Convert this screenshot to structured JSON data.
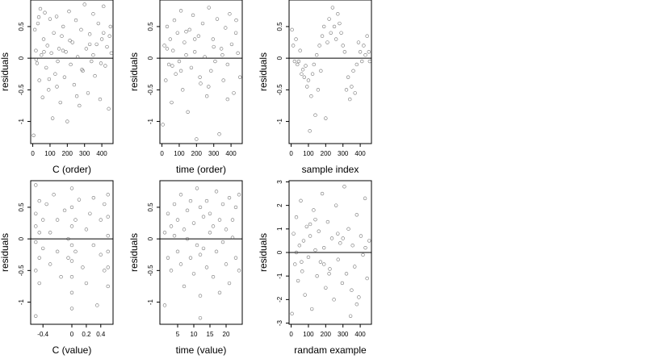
{
  "chart_data": [
    {
      "type": "scatter",
      "xlabel": "C (order)",
      "ylabel": "residuals",
      "xticks": [
        0,
        100,
        200,
        300,
        400
      ],
      "yticks": [
        -1.0,
        -0.5,
        0.0,
        0.5
      ],
      "xlim": [
        -12,
        465
      ],
      "ylim": [
        -1.35,
        0.92
      ],
      "hline": 0,
      "x": [
        5,
        12,
        18,
        25,
        30,
        38,
        44,
        50,
        57,
        63,
        70,
        78,
        85,
        92,
        100,
        108,
        115,
        122,
        130,
        138,
        145,
        152,
        160,
        168,
        176,
        184,
        192,
        200,
        210,
        220,
        230,
        240,
        250,
        260,
        270,
        280,
        290,
        300,
        310,
        320,
        330,
        340,
        350,
        360,
        370,
        380,
        390,
        400,
        410,
        420,
        430,
        440,
        450,
        455,
        20,
        65,
        140,
        215,
        285,
        350,
        410,
        35,
        95,
        175,
        255,
        330,
        395,
        445
      ],
      "y": [
        -1.22,
        0.45,
        0.12,
        -0.08,
        0.55,
        -0.35,
        0.78,
        0.05,
        -0.62,
        0.3,
        0.72,
        -0.15,
        0.2,
        -0.5,
        0.62,
        0.08,
        -0.95,
        0.4,
        -0.25,
        0.66,
        -0.05,
        0.15,
        -0.7,
        0.35,
        0.5,
        -0.3,
        0.1,
        -1.0,
        0.74,
        -0.1,
        0.25,
        -0.42,
        0.6,
        0.02,
        -0.75,
        0.45,
        -0.2,
        0.85,
        0.15,
        -0.55,
        0.38,
        -0.05,
        0.7,
        -0.28,
        0.22,
        0.55,
        -0.65,
        0.3,
        0.82,
        -0.12,
        0.18,
        -0.8,
        0.5,
        0.08,
        -0.02,
        0.1,
        -0.45,
        0.28,
        -0.18,
        0.05,
        0.4,
        0.65,
        -0.33,
        0.12,
        -0.6,
        0.22,
        -0.08,
        0.35
      ]
    },
    {
      "type": "scatter",
      "xlabel": "time (order)",
      "ylabel": "residuals",
      "xticks": [
        0,
        100,
        200,
        300,
        400
      ],
      "yticks": [
        -1.0,
        -0.5,
        0.0,
        0.5
      ],
      "xlim": [
        -12,
        465
      ],
      "ylim": [
        -1.35,
        0.92
      ],
      "hline": 0,
      "x": [
        5,
        14,
        22,
        30,
        40,
        48,
        56,
        64,
        72,
        80,
        90,
        100,
        110,
        120,
        130,
        140,
        150,
        160,
        170,
        180,
        190,
        200,
        212,
        224,
        236,
        248,
        260,
        272,
        284,
        296,
        308,
        320,
        332,
        344,
        356,
        368,
        380,
        392,
        404,
        416,
        428,
        440,
        452,
        30,
        110,
        190,
        270,
        350,
        430,
        60,
        140,
        220,
        300,
        380
      ],
      "y": [
        -1.05,
        0.2,
        -0.35,
        0.5,
        -0.1,
        0.3,
        -0.7,
        0.12,
        0.6,
        -0.25,
        0.4,
        -0.05,
        0.75,
        -0.5,
        0.25,
        0.05,
        -0.85,
        0.45,
        -0.15,
        0.68,
        0.1,
        -1.28,
        0.35,
        -0.4,
        0.55,
        0.02,
        -0.6,
        0.8,
        -0.2,
        0.3,
        -0.05,
        0.62,
        -1.2,
        0.15,
        -0.35,
        0.48,
        -0.1,
        0.7,
        0.22,
        -0.55,
        0.4,
        0.08,
        -0.3,
        0.15,
        -0.2,
        0.3,
        -0.45,
        0.05,
        0.6,
        -0.12,
        0.42,
        -0.3,
        0.18,
        -0.65
      ]
    },
    {
      "type": "scatter",
      "xlabel": "sample index",
      "ylabel": "residuals",
      "xticks": [
        0,
        100,
        200,
        300,
        400
      ],
      "yticks": [
        -1.0,
        -0.5,
        0.0,
        0.5
      ],
      "xlim": [
        -12,
        465
      ],
      "ylim": [
        -1.35,
        0.92
      ],
      "hline": 0,
      "x": [
        5,
        12,
        20,
        28,
        36,
        44,
        52,
        60,
        68,
        76,
        84,
        92,
        100,
        108,
        116,
        124,
        132,
        140,
        148,
        156,
        164,
        172,
        180,
        190,
        200,
        210,
        220,
        230,
        240,
        250,
        260,
        270,
        280,
        290,
        300,
        310,
        320,
        330,
        340,
        350,
        360,
        370,
        380,
        390,
        400,
        410,
        420,
        430,
        440,
        450,
        455
      ],
      "y": [
        0.45,
        0.2,
        -0.05,
        0.3,
        -0.1,
        -0.05,
        0.12,
        -0.25,
        -0.18,
        -0.3,
        -0.12,
        -0.45,
        -0.35,
        -1.15,
        -0.6,
        -0.25,
        -0.1,
        -0.9,
        0.05,
        -0.5,
        0.2,
        -0.2,
        0.35,
        0.5,
        -0.95,
        0.25,
        0.62,
        0.4,
        0.8,
        0.5,
        0.3,
        0.7,
        0.55,
        0.4,
        0.2,
        0.1,
        -0.5,
        -0.3,
        -0.65,
        -0.45,
        -0.2,
        -0.55,
        -0.1,
        0.25,
        0.1,
        -0.05,
        0.2,
        0.05,
        0.35,
        0.1,
        -0.05
      ]
    },
    {
      "type": "scatter",
      "xlabel": "C (value)",
      "ylabel": "residuals",
      "xticks": [
        -0.4,
        0.0,
        0.2,
        0.4
      ],
      "yticks": [
        -1.0,
        -0.5,
        0.0,
        0.5
      ],
      "xlim": [
        -0.57,
        0.57
      ],
      "ylim": [
        -1.35,
        0.92
      ],
      "hline": 0,
      "x": [
        -0.5,
        -0.5,
        -0.5,
        -0.5,
        -0.5,
        -0.5,
        -0.45,
        -0.45,
        -0.45,
        -0.45,
        -0.4,
        -0.4,
        -0.35,
        -0.3,
        -0.3,
        -0.25,
        -0.2,
        -0.2,
        -0.15,
        -0.1,
        -0.05,
        -0.05,
        0.0,
        0.0,
        0.0,
        0.0,
        0.0,
        0.0,
        0.0,
        0.0,
        0.05,
        0.05,
        0.1,
        0.15,
        0.2,
        0.2,
        0.25,
        0.3,
        0.3,
        0.35,
        0.4,
        0.4,
        0.45,
        0.45,
        0.5,
        0.5,
        0.5,
        0.5,
        0.5,
        0.5
      ],
      "y": [
        -1.22,
        0.85,
        0.4,
        -0.05,
        -0.5,
        0.2,
        0.6,
        -0.3,
        0.1,
        -0.7,
        0.3,
        -0.15,
        0.55,
        -0.4,
        0.1,
        0.7,
        -0.2,
        0.3,
        -0.6,
        0.45,
        0.0,
        -0.3,
        0.8,
        0.5,
        0.2,
        -0.1,
        -0.35,
        -0.6,
        -0.85,
        -1.1,
        0.3,
        -0.2,
        0.62,
        -0.45,
        0.15,
        -0.7,
        0.4,
        -0.1,
        0.65,
        -1.05,
        0.3,
        -0.25,
        0.55,
        -0.5,
        0.7,
        0.35,
        0.05,
        -0.2,
        -0.45,
        -0.75
      ]
    },
    {
      "type": "scatter",
      "xlabel": "time (value)",
      "ylabel": "residuals",
      "xticks": [
        5,
        10,
        15,
        20
      ],
      "yticks": [
        -1.0,
        -0.5,
        0.0,
        0.5
      ],
      "xlim": [
        -0.5,
        25
      ],
      "ylim": [
        -1.35,
        0.92
      ],
      "hline": 0,
      "x": [
        1,
        1,
        2,
        2,
        3,
        3,
        4,
        4,
        5,
        5,
        6,
        6,
        7,
        7,
        8,
        8,
        9,
        9,
        10,
        10,
        11,
        11,
        12,
        12,
        12,
        12,
        13,
        13,
        14,
        14,
        15,
        15,
        16,
        16,
        17,
        17,
        18,
        18,
        19,
        19,
        20,
        20,
        21,
        21,
        22,
        22,
        23,
        23,
        24,
        24
      ],
      "y": [
        -1.05,
        0.1,
        0.4,
        -0.3,
        0.2,
        -0.5,
        0.55,
        0.05,
        -0.2,
        0.3,
        0.7,
        -0.4,
        0.15,
        -0.75,
        0.45,
        0.0,
        -0.3,
        0.6,
        0.25,
        -0.55,
        0.8,
        -0.1,
        0.5,
        -0.25,
        -0.9,
        -1.25,
        0.35,
        -0.15,
        0.6,
        -0.45,
        0.1,
        0.4,
        -0.6,
        0.2,
        0.75,
        -0.2,
        0.3,
        -0.85,
        0.55,
        -0.05,
        0.15,
        -0.4,
        0.65,
        -0.7,
        0.3,
        0.02,
        -0.3,
        0.5,
        0.7,
        -0.5
      ]
    },
    {
      "type": "scatter",
      "xlabel": "randam example",
      "ylabel": "residuals",
      "xticks": [
        0,
        100,
        200,
        300,
        400
      ],
      "yticks": [
        -3,
        -2,
        -1,
        0,
        1,
        2,
        3
      ],
      "xlim": [
        -12,
        465
      ],
      "ylim": [
        -3.05,
        3.05
      ],
      "hline": 0,
      "x": [
        5,
        14,
        22,
        30,
        40,
        48,
        56,
        64,
        72,
        80,
        90,
        100,
        110,
        120,
        130,
        140,
        150,
        160,
        170,
        180,
        190,
        200,
        212,
        224,
        236,
        248,
        260,
        272,
        284,
        296,
        308,
        320,
        332,
        344,
        356,
        368,
        380,
        392,
        404,
        416,
        428,
        440,
        452,
        30,
        110,
        190,
        270,
        350,
        430,
        60,
        140,
        220,
        300,
        380
      ],
      "y": [
        -2.6,
        0.8,
        -0.5,
        1.5,
        -1.2,
        0.3,
        2.2,
        -0.8,
        0.5,
        -1.8,
        1.1,
        -0.2,
        0.7,
        -2.4,
        1.8,
        0.1,
        -1.0,
        0.9,
        -0.4,
        2.5,
        0.2,
        -1.5,
        1.3,
        -0.7,
        0.6,
        -2.0,
        2.0,
        -0.3,
        0.4,
        -1.3,
        2.8,
        -0.9,
        1.0,
        -2.7,
        0.3,
        -0.6,
        1.6,
        -1.9,
        0.7,
        -0.1,
        2.3,
        -1.1,
        0.5,
        0.0,
        1.2,
        -0.5,
        0.8,
        -1.6,
        0.2,
        -0.4,
        1.4,
        -0.9,
        0.6,
        -2.2
      ]
    }
  ]
}
